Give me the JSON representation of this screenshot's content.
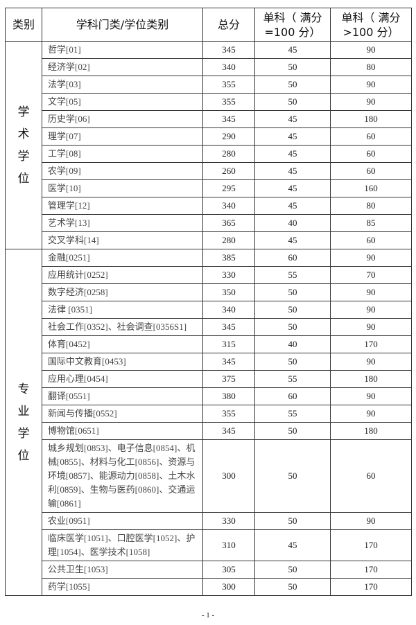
{
  "header": {
    "category": "类别",
    "discipline": "学科门类/学位类别",
    "total": "总分",
    "single_100": "单科（ 满分=100 分）",
    "single_gt100": "单科（ 满分>100 分）"
  },
  "groups": [
    {
      "label": "学术学位",
      "rows": [
        {
          "name": "哲学[01]",
          "total": "345",
          "s100": "45",
          "sgt100": "90"
        },
        {
          "name": "经济学[02]",
          "total": "340",
          "s100": "50",
          "sgt100": "80"
        },
        {
          "name": "法学[03]",
          "total": "355",
          "s100": "50",
          "sgt100": "90"
        },
        {
          "name": "文学[05]",
          "total": "355",
          "s100": "50",
          "sgt100": "90"
        },
        {
          "name": "历史学[06]",
          "total": "345",
          "s100": "45",
          "sgt100": "180"
        },
        {
          "name": "理学[07]",
          "total": "290",
          "s100": "45",
          "sgt100": "60"
        },
        {
          "name": "工学[08]",
          "total": "280",
          "s100": "45",
          "sgt100": "60"
        },
        {
          "name": "农学[09]",
          "total": "260",
          "s100": "45",
          "sgt100": "60"
        },
        {
          "name": "医学[10]",
          "total": "295",
          "s100": "45",
          "sgt100": "160"
        },
        {
          "name": "管理学[12]",
          "total": "340",
          "s100": "45",
          "sgt100": "80"
        },
        {
          "name": "艺术学[13]",
          "total": "365",
          "s100": "40",
          "sgt100": "85"
        },
        {
          "name": "交叉学科[14]",
          "total": "280",
          "s100": "45",
          "sgt100": "60"
        }
      ]
    },
    {
      "label": "专业学位",
      "rows": [
        {
          "name": "金融[0251]",
          "total": "385",
          "s100": "60",
          "sgt100": "90"
        },
        {
          "name": "应用统计[0252]",
          "total": "330",
          "s100": "55",
          "sgt100": "70"
        },
        {
          "name": "数字经济[0258]",
          "total": "350",
          "s100": "50",
          "sgt100": "90"
        },
        {
          "name": "法律 [0351]",
          "total": "340",
          "s100": "50",
          "sgt100": "90"
        },
        {
          "name": "社会工作[0352]、社会调查[0356S1]",
          "total": "345",
          "s100": "50",
          "sgt100": "90"
        },
        {
          "name": "体育[0452]",
          "total": "315",
          "s100": "40",
          "sgt100": "170"
        },
        {
          "name": "国际中文教育[0453]",
          "total": "345",
          "s100": "50",
          "sgt100": "90"
        },
        {
          "name": "应用心理[0454]",
          "total": "375",
          "s100": "55",
          "sgt100": "180"
        },
        {
          "name": "翻译[0551]",
          "total": "380",
          "s100": "60",
          "sgt100": "90"
        },
        {
          "name": "新闻与传播[0552]",
          "total": "355",
          "s100": "55",
          "sgt100": "90"
        },
        {
          "name": "博物馆[0651]",
          "total": "345",
          "s100": "50",
          "sgt100": "180"
        },
        {
          "name": "城乡规划[0853]、电子信息[0854]、机械[0855]、材料与化工[0856]、资源与环境[0857]、能源动力[0858]、土木水利[0859]、生物与医药[0860]、交通运输[0861]",
          "total": "300",
          "s100": "50",
          "sgt100": "60"
        },
        {
          "name": "农业[0951]",
          "total": "330",
          "s100": "50",
          "sgt100": "90"
        },
        {
          "name": "临床医学[1051]、口腔医学[1052]、护理[1054]、医学技术[1058]",
          "total": "310",
          "s100": "45",
          "sgt100": "170"
        },
        {
          "name": "公共卫生[1053]",
          "total": "305",
          "s100": "50",
          "sgt100": "170"
        },
        {
          "name": "药学[1055]",
          "total": "300",
          "s100": "50",
          "sgt100": "170"
        }
      ]
    }
  ],
  "footer": {
    "page_number": "- 1 -"
  }
}
